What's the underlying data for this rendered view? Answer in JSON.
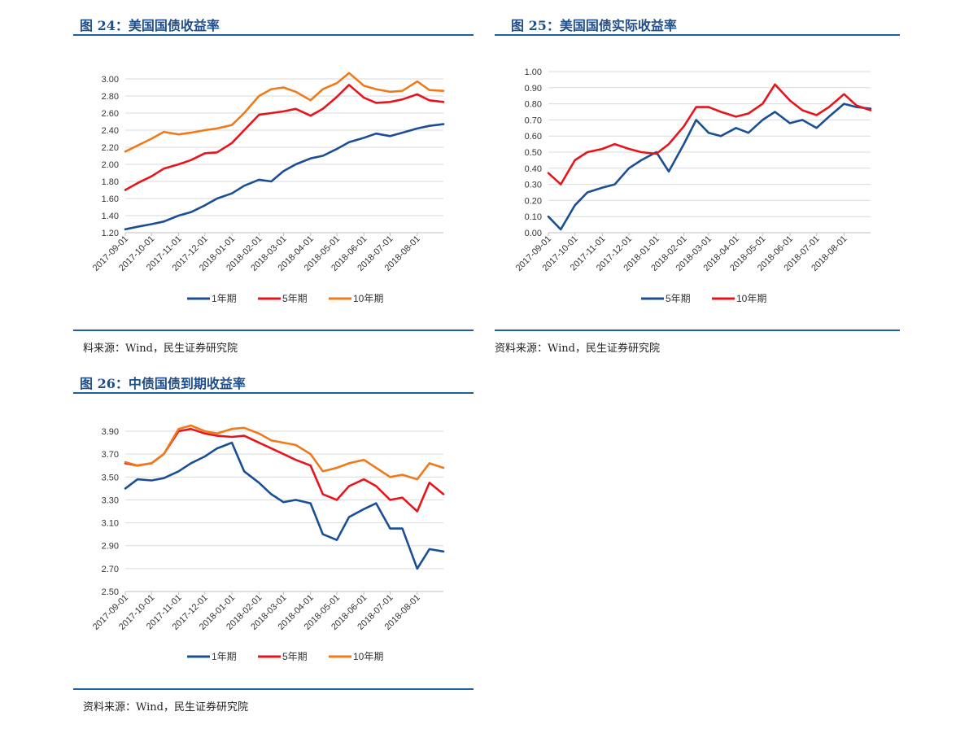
{
  "panels": [
    {
      "title": "图 24：美国国债收益率",
      "source": "料来源：Wind，民生证券研究院"
    },
    {
      "title": "图 25：美国国债实际收益率",
      "source": "资料来源：Wind，民生证券研究院"
    },
    {
      "title": "图 26：中债国债到期收益率",
      "source": "资料来源：Wind，民生证券研究院"
    }
  ],
  "colors": {
    "blue": "#1a4f96",
    "red": "#e8141c",
    "orange": "#f07a19",
    "rule": "#1f5fa6",
    "title": "#1f4e8c",
    "grid": "#d9d9d9"
  },
  "chart_data": [
    {
      "type": "line",
      "title": "",
      "x_ticks": [
        "2017-09-01",
        "2017-10-01",
        "2017-11-01",
        "2017-12-01",
        "2018-01-01",
        "2018-02-01",
        "2018-03-01",
        "2018-04-01",
        "2018-05-01",
        "2018-06-01",
        "2018-07-01",
        "2018-08-01"
      ],
      "y_ticks": [
        "3.00",
        "2.80",
        "2.60",
        "2.40",
        "2.20",
        "2.00",
        "1.80",
        "1.60",
        "1.40",
        "1.20"
      ],
      "ylim": [
        1.2,
        3.0
      ],
      "grid": "horizontal",
      "legend_position": "bottom",
      "x": [
        "2017-09-01",
        "2017-09-15",
        "2017-10-01",
        "2017-10-15",
        "2017-11-01",
        "2017-11-15",
        "2017-12-01",
        "2017-12-15",
        "2018-01-01",
        "2018-01-15",
        "2018-02-01",
        "2018-02-15",
        "2018-03-01",
        "2018-03-15",
        "2018-04-01",
        "2018-04-15",
        "2018-05-01",
        "2018-05-15",
        "2018-06-01",
        "2018-06-15",
        "2018-07-01",
        "2018-07-15",
        "2018-08-01",
        "2018-08-15",
        "2018-08-31"
      ],
      "series": [
        {
          "name": "1年期",
          "color": "blue",
          "values": [
            1.24,
            1.27,
            1.3,
            1.33,
            1.4,
            1.44,
            1.52,
            1.6,
            1.66,
            1.75,
            1.82,
            1.8,
            1.92,
            2.0,
            2.07,
            2.1,
            2.18,
            2.26,
            2.31,
            2.36,
            2.33,
            2.37,
            2.42,
            2.45,
            2.47
          ]
        },
        {
          "name": "5年期",
          "color": "red",
          "values": [
            1.7,
            1.78,
            1.86,
            1.95,
            2.0,
            2.05,
            2.13,
            2.14,
            2.25,
            2.4,
            2.58,
            2.6,
            2.62,
            2.65,
            2.57,
            2.65,
            2.79,
            2.93,
            2.78,
            2.72,
            2.73,
            2.76,
            2.82,
            2.75,
            2.73
          ]
        },
        {
          "name": "10年期",
          "color": "orange",
          "values": [
            2.15,
            2.22,
            2.3,
            2.38,
            2.35,
            2.37,
            2.4,
            2.42,
            2.46,
            2.6,
            2.8,
            2.88,
            2.9,
            2.85,
            2.75,
            2.88,
            2.95,
            3.07,
            2.92,
            2.88,
            2.85,
            2.86,
            2.97,
            2.87,
            2.86
          ]
        }
      ]
    },
    {
      "type": "line",
      "title": "",
      "x_ticks": [
        "2017-09-01",
        "2017-10-01",
        "2017-11-01",
        "2017-12-01",
        "2018-01-01",
        "2018-02-01",
        "2018-03-01",
        "2018-04-01",
        "2018-05-01",
        "2018-06-01",
        "2018-07-01",
        "2018-08-01"
      ],
      "y_ticks": [
        "1.00",
        "0.90",
        "0.80",
        "0.70",
        "0.60",
        "0.50",
        "0.40",
        "0.30",
        "0.20",
        "0.10",
        "0.00"
      ],
      "ylim": [
        0.0,
        1.0
      ],
      "grid": "horizontal",
      "legend_position": "bottom",
      "x": [
        "2017-09-01",
        "2017-09-15",
        "2017-10-01",
        "2017-10-15",
        "2017-11-01",
        "2017-11-15",
        "2017-12-01",
        "2017-12-15",
        "2018-01-01",
        "2018-01-15",
        "2018-02-01",
        "2018-02-15",
        "2018-03-01",
        "2018-03-15",
        "2018-04-01",
        "2018-04-15",
        "2018-05-01",
        "2018-05-15",
        "2018-06-01",
        "2018-06-15",
        "2018-07-01",
        "2018-07-15",
        "2018-08-01",
        "2018-08-15",
        "2018-08-31"
      ],
      "series": [
        {
          "name": "5年期",
          "color": "blue",
          "values": [
            0.1,
            0.02,
            0.17,
            0.25,
            0.28,
            0.3,
            0.4,
            0.45,
            0.5,
            0.38,
            0.55,
            0.7,
            0.62,
            0.6,
            0.65,
            0.62,
            0.7,
            0.75,
            0.68,
            0.7,
            0.65,
            0.72,
            0.8,
            0.78,
            0.77
          ]
        },
        {
          "name": "10年期",
          "color": "red",
          "values": [
            0.37,
            0.3,
            0.45,
            0.5,
            0.52,
            0.55,
            0.52,
            0.5,
            0.49,
            0.55,
            0.66,
            0.78,
            0.78,
            0.75,
            0.72,
            0.74,
            0.8,
            0.92,
            0.82,
            0.76,
            0.73,
            0.78,
            0.86,
            0.79,
            0.76
          ]
        }
      ]
    },
    {
      "type": "line",
      "title": "",
      "x_ticks": [
        "2017-09-01",
        "2017-10-01",
        "2017-11-01",
        "2017-12-01",
        "2018-01-01",
        "2018-02-01",
        "2018-03-01",
        "2018-04-01",
        "2018-05-01",
        "2018-06-01",
        "2018-07-01",
        "2018-08-01"
      ],
      "y_ticks": [
        "3.90",
        "3.70",
        "3.50",
        "3.30",
        "3.10",
        "2.90",
        "2.70",
        "2.50"
      ],
      "ylim": [
        2.5,
        3.9
      ],
      "grid": "horizontal",
      "legend_position": "bottom",
      "x": [
        "2017-09-01",
        "2017-09-15",
        "2017-10-01",
        "2017-10-15",
        "2017-11-01",
        "2017-11-15",
        "2017-12-01",
        "2017-12-15",
        "2018-01-01",
        "2018-01-15",
        "2018-02-01",
        "2018-02-15",
        "2018-03-01",
        "2018-03-15",
        "2018-04-01",
        "2018-04-15",
        "2018-05-01",
        "2018-05-15",
        "2018-06-01",
        "2018-06-15",
        "2018-07-01",
        "2018-07-15",
        "2018-08-01",
        "2018-08-15",
        "2018-08-31"
      ],
      "series": [
        {
          "name": "1年期",
          "color": "blue",
          "values": [
            3.4,
            3.48,
            3.47,
            3.49,
            3.55,
            3.62,
            3.68,
            3.75,
            3.8,
            3.55,
            3.45,
            3.35,
            3.28,
            3.3,
            3.27,
            3.0,
            2.95,
            3.15,
            3.22,
            3.27,
            3.05,
            3.05,
            2.7,
            2.87,
            2.85
          ]
        },
        {
          "name": "5年期",
          "color": "red",
          "values": [
            3.62,
            3.6,
            3.62,
            3.7,
            3.9,
            3.92,
            3.88,
            3.86,
            3.85,
            3.86,
            3.8,
            3.75,
            3.7,
            3.65,
            3.6,
            3.35,
            3.3,
            3.42,
            3.48,
            3.42,
            3.3,
            3.32,
            3.2,
            3.45,
            3.35
          ]
        },
        {
          "name": "10年期",
          "color": "orange",
          "values": [
            3.63,
            3.6,
            3.62,
            3.7,
            3.92,
            3.95,
            3.9,
            3.88,
            3.92,
            3.93,
            3.88,
            3.82,
            3.8,
            3.78,
            3.7,
            3.55,
            3.58,
            3.62,
            3.65,
            3.58,
            3.5,
            3.52,
            3.48,
            3.62,
            3.58
          ]
        }
      ]
    }
  ]
}
